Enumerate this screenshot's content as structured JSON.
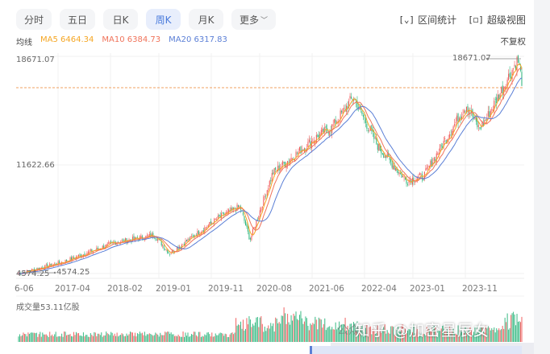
{
  "tabs": [
    {
      "label": "分时",
      "active": false
    },
    {
      "label": "五日",
      "active": false
    },
    {
      "label": "日K",
      "active": false
    },
    {
      "label": "周K",
      "active": true
    },
    {
      "label": "月K",
      "active": false
    },
    {
      "label": "更多",
      "active": false
    }
  ],
  "tools": {
    "interval_stats": {
      "icon": "[⌄]",
      "label": "区间统计"
    },
    "super_view": {
      "icon": "[◻]",
      "label": "超级视图"
    }
  },
  "ma_legend": {
    "label": "均线",
    "ma5": {
      "text": "MA5 6464.34",
      "color": "#f5a623"
    },
    "ma10": {
      "text": "MA10 6384.73",
      "color": "#f0735a"
    },
    "ma20": {
      "text": "MA20 6317.83",
      "color": "#5b7fd6"
    }
  },
  "adjust_mode": "不复权",
  "volume_label": "成交量53.11亿股",
  "watermark": "知乎 @加密星辰女",
  "watermark_small": "公众",
  "colors": {
    "up": "#f05a5a",
    "down": "#2eb67d",
    "ma5": "#f5a623",
    "ma10": "#f0735a",
    "ma20": "#5b7fd6",
    "ref_line": "#f0a060",
    "grid": "#f0f0f0"
  },
  "chart_data": {
    "type": "candlestick",
    "title": "周K",
    "ylabels": [
      "18671.07",
      "11622.66",
      "4574.25"
    ],
    "y_range": [
      4574.25,
      18671.07
    ],
    "max_marker": "18671.07",
    "min_marker": "4574.25",
    "min_label_left": "4574.25",
    "x_ticks": [
      "6-06",
      "2017-04",
      "2018-02",
      "2019-01",
      "2019-11",
      "2020-08",
      "2021-06",
      "2022-04",
      "2023-01",
      "2023-11"
    ],
    "ma": {
      "MA5": 6464.34,
      "MA10": 6384.73,
      "MA20": 6317.83
    },
    "trend_keypoints": [
      {
        "x": "2016-06",
        "close": 4574
      },
      {
        "x": "2017-04",
        "close": 5300
      },
      {
        "x": "2018-02",
        "close": 6600
      },
      {
        "x": "2018-10",
        "close": 7100
      },
      {
        "x": "2019-01",
        "close": 5900
      },
      {
        "x": "2019-11",
        "close": 8300
      },
      {
        "x": "2020-02",
        "close": 9000
      },
      {
        "x": "2020-03",
        "close": 6800
      },
      {
        "x": "2020-08",
        "close": 11200
      },
      {
        "x": "2021-02",
        "close": 13500
      },
      {
        "x": "2021-06",
        "close": 14300
      },
      {
        "x": "2021-11",
        "close": 16200
      },
      {
        "x": "2022-04",
        "close": 12900
      },
      {
        "x": "2022-10",
        "close": 10700
      },
      {
        "x": "2023-01",
        "close": 11000
      },
      {
        "x": "2023-07",
        "close": 15700
      },
      {
        "x": "2023-10",
        "close": 14100
      },
      {
        "x": "2023-11",
        "close": 14800
      },
      {
        "x": "2024-07",
        "close": 18671
      },
      {
        "x": "2024-08",
        "close": 17300
      }
    ],
    "volume_unit": "亿股",
    "last_volume": 53.11
  }
}
